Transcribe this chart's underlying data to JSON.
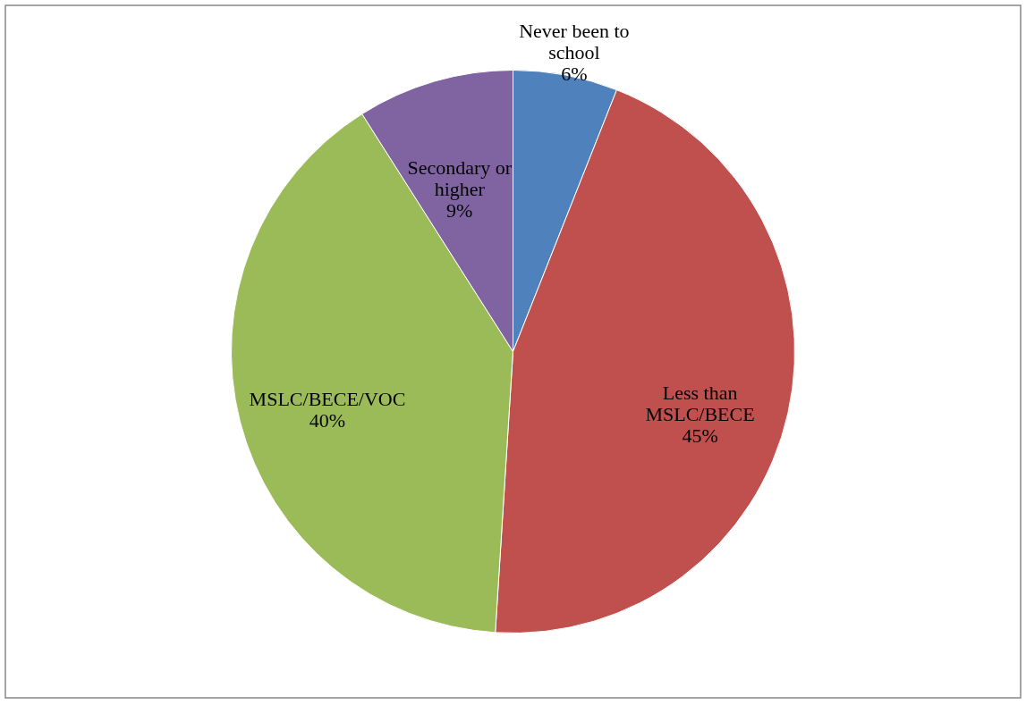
{
  "chart_data": {
    "type": "pie",
    "categories": [
      "Never been to school",
      "Less than MSLC/BECE",
      "MSLC/BECE/VOC",
      "Secondary or higher"
    ],
    "values": [
      6,
      45,
      40,
      9
    ],
    "colors": [
      "#4f81bd",
      "#c0504d",
      "#9bbb59",
      "#8064a2"
    ],
    "value_labels": [
      "6%",
      "45%",
      "40%",
      "9%"
    ],
    "legend": false
  }
}
